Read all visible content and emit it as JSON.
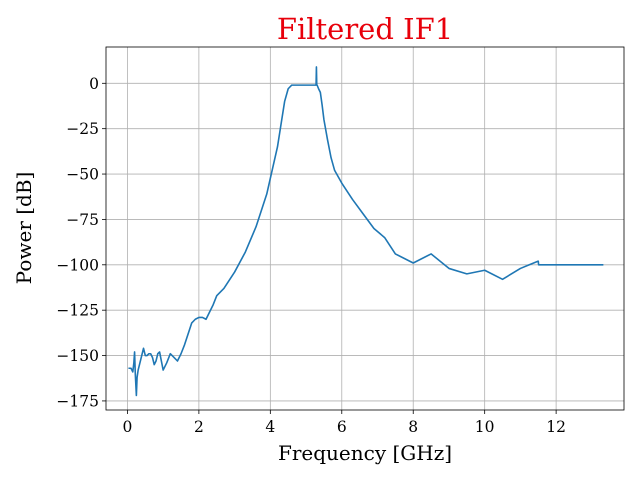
{
  "chart_data": {
    "type": "line",
    "title": "Filtered IF1",
    "title_color": "#e8000b",
    "xlabel": "Frequency [GHz]",
    "ylabel": "Power [dB]",
    "xlim": [
      -0.6,
      13.9
    ],
    "ylim": [
      -180,
      20
    ],
    "xticks": [
      0,
      2,
      4,
      6,
      8,
      10,
      12
    ],
    "yticks": [
      0,
      -25,
      -50,
      -75,
      -100,
      -125,
      -150,
      -175
    ],
    "xtick_labels": [
      "0",
      "2",
      "4",
      "6",
      "8",
      "10",
      "12"
    ],
    "ytick_labels": [
      "0",
      "−25",
      "−50",
      "−75",
      "−100",
      "−125",
      "−150",
      "−175"
    ],
    "grid": true,
    "series": [
      {
        "color": "#1f77b4",
        "x": [
          0.05,
          0.1,
          0.15,
          0.18,
          0.2,
          0.22,
          0.25,
          0.27,
          0.3,
          0.35,
          0.4,
          0.45,
          0.5,
          0.55,
          0.6,
          0.65,
          0.7,
          0.75,
          0.8,
          0.85,
          0.9,
          0.95,
          1.0,
          1.05,
          1.1,
          1.2,
          1.3,
          1.4,
          1.5,
          1.6,
          1.7,
          1.8,
          1.9,
          2.0,
          2.1,
          2.2,
          2.3,
          2.4,
          2.5,
          2.7,
          3.0,
          3.3,
          3.6,
          3.9,
          4.2,
          4.4,
          4.5,
          4.6,
          4.65,
          4.7,
          4.8,
          5.0,
          5.2,
          5.28,
          5.29,
          5.3,
          5.31,
          5.35,
          5.4,
          5.45,
          5.5,
          5.6,
          5.7,
          5.8,
          6.0,
          6.3,
          6.6,
          6.9,
          7.2,
          7.5,
          8.0,
          8.5,
          9.0,
          9.5,
          10.0,
          10.5,
          11.0,
          11.25,
          11.5,
          11.51,
          12.0,
          12.5,
          13.0,
          13.3
        ],
        "y": [
          -157,
          -157,
          -159,
          -154,
          -148,
          -160,
          -172,
          -162,
          -158,
          -154,
          -150,
          -146,
          -150,
          -150,
          -149,
          -149,
          -151,
          -155,
          -153,
          -149,
          -148,
          -153,
          -158,
          -156,
          -154,
          -149,
          -151,
          -153,
          -149,
          -144,
          -138,
          -132,
          -130,
          -129,
          -129,
          -130,
          -126,
          -122,
          -117,
          -113,
          -104,
          -93,
          -79,
          -61,
          -35,
          -10,
          -3,
          -1,
          -1,
          -1,
          -1,
          -1,
          -1,
          -1,
          9,
          -1,
          -1,
          -3,
          -5,
          -12,
          -20,
          -31,
          -41,
          -48,
          -55,
          -64,
          -72,
          -80,
          -85,
          -94,
          -99,
          -94,
          -102,
          -105,
          -103,
          -108,
          -102,
          -100,
          -98,
          -100,
          -100,
          -100,
          -100,
          -100
        ]
      }
    ]
  }
}
